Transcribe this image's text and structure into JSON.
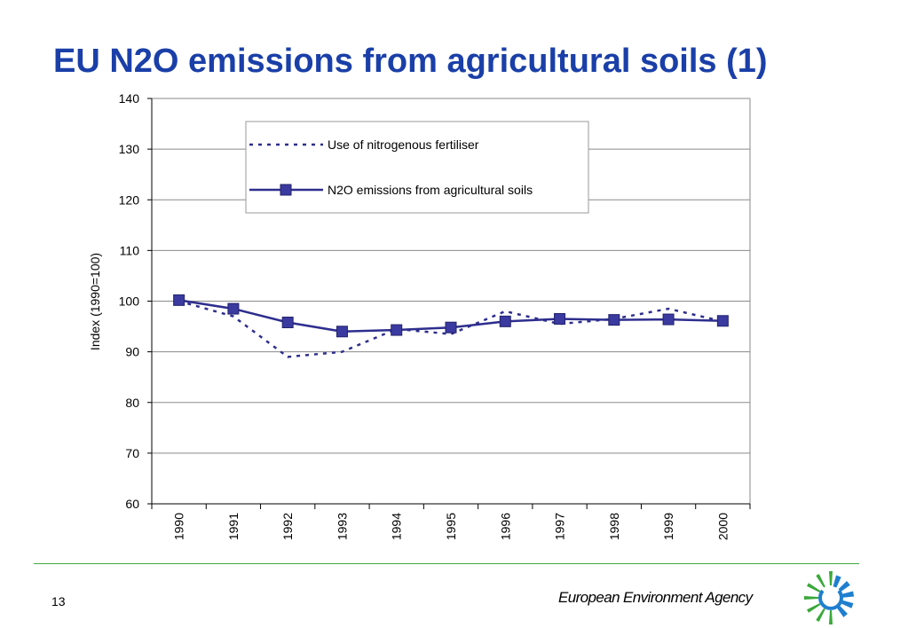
{
  "title": "EU N2O emissions from agricultural soils (1)",
  "page_number": "13",
  "footer": {
    "agency": "European Environment Agency"
  },
  "colors": {
    "title": "#1a3fa8",
    "series": "#2e2e8e",
    "marker": "#3a3aa0",
    "footer_line": "#3fa83f"
  },
  "chart_data": {
    "type": "line",
    "title": "",
    "xlabel": "",
    "ylabel": "Index (1990=100)",
    "x": [
      "1990",
      "1991",
      "1992",
      "1993",
      "1994",
      "1995",
      "1996",
      "1997",
      "1998",
      "1999",
      "2000"
    ],
    "ylim": [
      60,
      140
    ],
    "yticks": [
      "60",
      "70",
      "80",
      "90",
      "100",
      "110",
      "120",
      "130",
      "140"
    ],
    "grid": true,
    "legend_position": "top-center",
    "series": [
      {
        "name": "Use of nitrogenous fertiliser",
        "style": "dotted",
        "values": [
          100,
          97,
          89,
          90,
          94.5,
          93.5,
          98,
          95.5,
          96.5,
          98.5,
          96
        ]
      },
      {
        "name": "N2O emissions from agricultural soils",
        "style": "solid-square-markers",
        "values": [
          100.2,
          98.5,
          95.8,
          94,
          94.3,
          94.8,
          96,
          96.5,
          96.3,
          96.4,
          96.1
        ]
      }
    ]
  }
}
